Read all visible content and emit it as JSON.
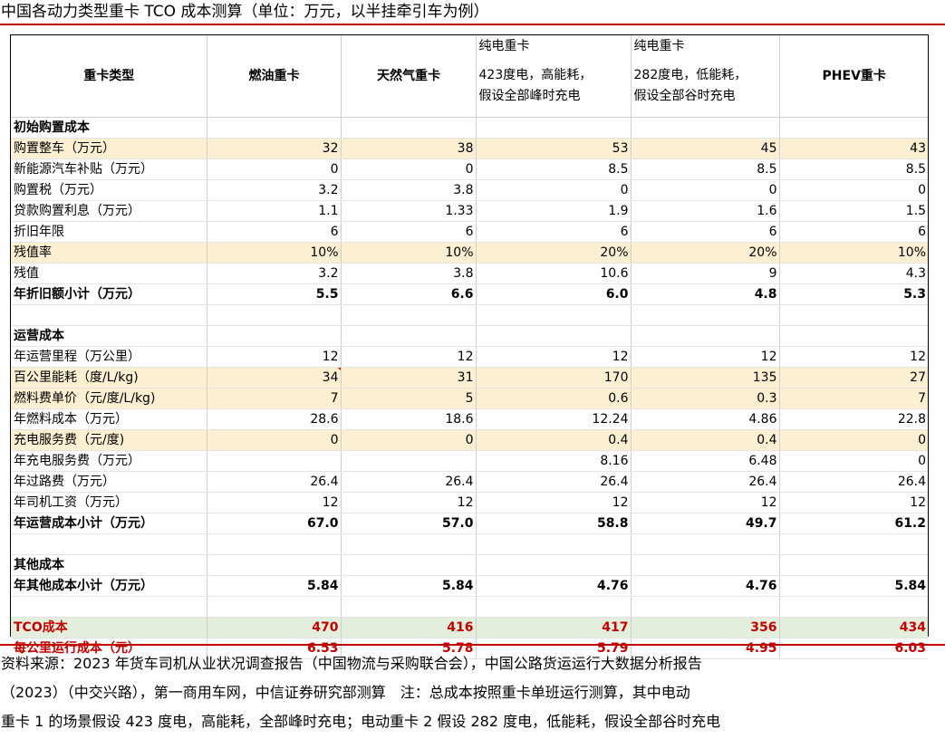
{
  "title": "中国各动力类型重卡 TCO 成本测算（单位：万元，以半挂牵引车为例）",
  "header": {
    "col0": "重卡类型",
    "col1": "燃油重卡",
    "col2": "天然气重卡",
    "col3_top": "纯电重卡",
    "col3_sub1": "423度电，高能耗，",
    "col3_sub2": "假设全部峰时充电",
    "col4_top": "纯电重卡",
    "col4_sub1": "282度电，低能耗，",
    "col4_sub2": "假设全部谷时充电",
    "col5": "PHEV重卡"
  },
  "rows": [
    {
      "label": "初始购置成本",
      "values": [
        "",
        "",
        "",
        "",
        ""
      ],
      "style": "sect"
    },
    {
      "label": "购置整车（万元）",
      "values": [
        "32",
        "38",
        "53",
        "45",
        "43"
      ],
      "style": "hl"
    },
    {
      "label": "新能源汽车补贴（万元）",
      "values": [
        "0",
        "0",
        "8.5",
        "8.5",
        "8.5"
      ],
      "style": ""
    },
    {
      "label": "购置税（万元）",
      "values": [
        "3.2",
        "3.8",
        "0",
        "0",
        "0"
      ],
      "style": ""
    },
    {
      "label": "贷款购置利息（万元）",
      "values": [
        "1.1",
        "1.33",
        "1.9",
        "1.6",
        "1.5"
      ],
      "style": ""
    },
    {
      "label": "折旧年限",
      "values": [
        "6",
        "6",
        "6",
        "6",
        "6"
      ],
      "style": ""
    },
    {
      "label": "残值率",
      "values": [
        "10%",
        "10%",
        "20%",
        "20%",
        "10%"
      ],
      "style": "hl"
    },
    {
      "label": "残值",
      "values": [
        "3.2",
        "3.8",
        "10.6",
        "9",
        "4.3"
      ],
      "style": ""
    },
    {
      "label": "年折旧额小计（万元）",
      "values": [
        "5.5",
        "6.6",
        "6.0",
        "4.8",
        "5.3"
      ],
      "style": "bold"
    },
    {
      "label": "",
      "values": [
        "",
        "",
        "",
        "",
        ""
      ],
      "style": ""
    },
    {
      "label": "运营成本",
      "values": [
        "",
        "",
        "",
        "",
        ""
      ],
      "style": "sect"
    },
    {
      "label": "年运营里程（万公里）",
      "values": [
        "12",
        "12",
        "12",
        "12",
        "12"
      ],
      "style": ""
    },
    {
      "label": "百公里能耗（度/L/kg)",
      "values": [
        "34",
        "31",
        "170",
        "135",
        "27"
      ],
      "style": "hl"
    },
    {
      "label": "燃料费单价（元/度/L/kg)",
      "values": [
        "7",
        "5",
        "0.6",
        "0.3",
        "7"
      ],
      "style": "hl"
    },
    {
      "label": "年燃料成本（万元）",
      "values": [
        "28.6",
        "18.6",
        "12.24",
        "4.86",
        "22.8"
      ],
      "style": ""
    },
    {
      "label": "充电服务费（元/度)",
      "values": [
        "0",
        "0",
        "0.4",
        "0.4",
        "0"
      ],
      "style": "hl"
    },
    {
      "label": "年充电服务费（万元）",
      "values": [
        "",
        "",
        "8.16",
        "6.48",
        "0"
      ],
      "style": ""
    },
    {
      "label": "年过路费（万元）",
      "values": [
        "26.4",
        "26.4",
        "26.4",
        "26.4",
        "26.4"
      ],
      "style": ""
    },
    {
      "label": "年司机工资（万元）",
      "values": [
        "12",
        "12",
        "12",
        "12",
        "12"
      ],
      "style": ""
    },
    {
      "label": "年运营成本小计（万元）",
      "values": [
        "67.0",
        "57.0",
        "58.8",
        "49.7",
        "61.2"
      ],
      "style": "bold"
    },
    {
      "label": "",
      "values": [
        "",
        "",
        "",
        "",
        ""
      ],
      "style": ""
    },
    {
      "label": "其他成本",
      "values": [
        "",
        "",
        "",
        "",
        ""
      ],
      "style": "sect"
    },
    {
      "label": "年其他成本小计（万元）",
      "values": [
        "5.84",
        "5.84",
        "4.76",
        "4.76",
        "5.84"
      ],
      "style": "bold"
    },
    {
      "label": "",
      "values": [
        "",
        "",
        "",
        "",
        ""
      ],
      "style": ""
    },
    {
      "label": "TCO成本",
      "values": [
        "470",
        "416",
        "417",
        "356",
        "434"
      ],
      "style": "red tco"
    },
    {
      "label": "每公里运行成本（元）",
      "values": [
        "6.53",
        "5.78",
        "5.79",
        "4.95",
        "6.03"
      ],
      "style": "red"
    }
  ],
  "footer": {
    "line1": "资料来源：2023 年货车司机从业状况调查报告（中国物流与采购联合会），中国公路货运运行大数据分析报告",
    "line2": "（2023）（中交兴路），第一商用车网，中信证券研究部测算　注：总成本按照重卡单班运行测算，其中电动",
    "line3": "重卡 1 的场景假设 423 度电，高能耗，全部峰时充电；电动重卡 2 假设 282 度电，低能耗，假设全部谷时充电"
  }
}
